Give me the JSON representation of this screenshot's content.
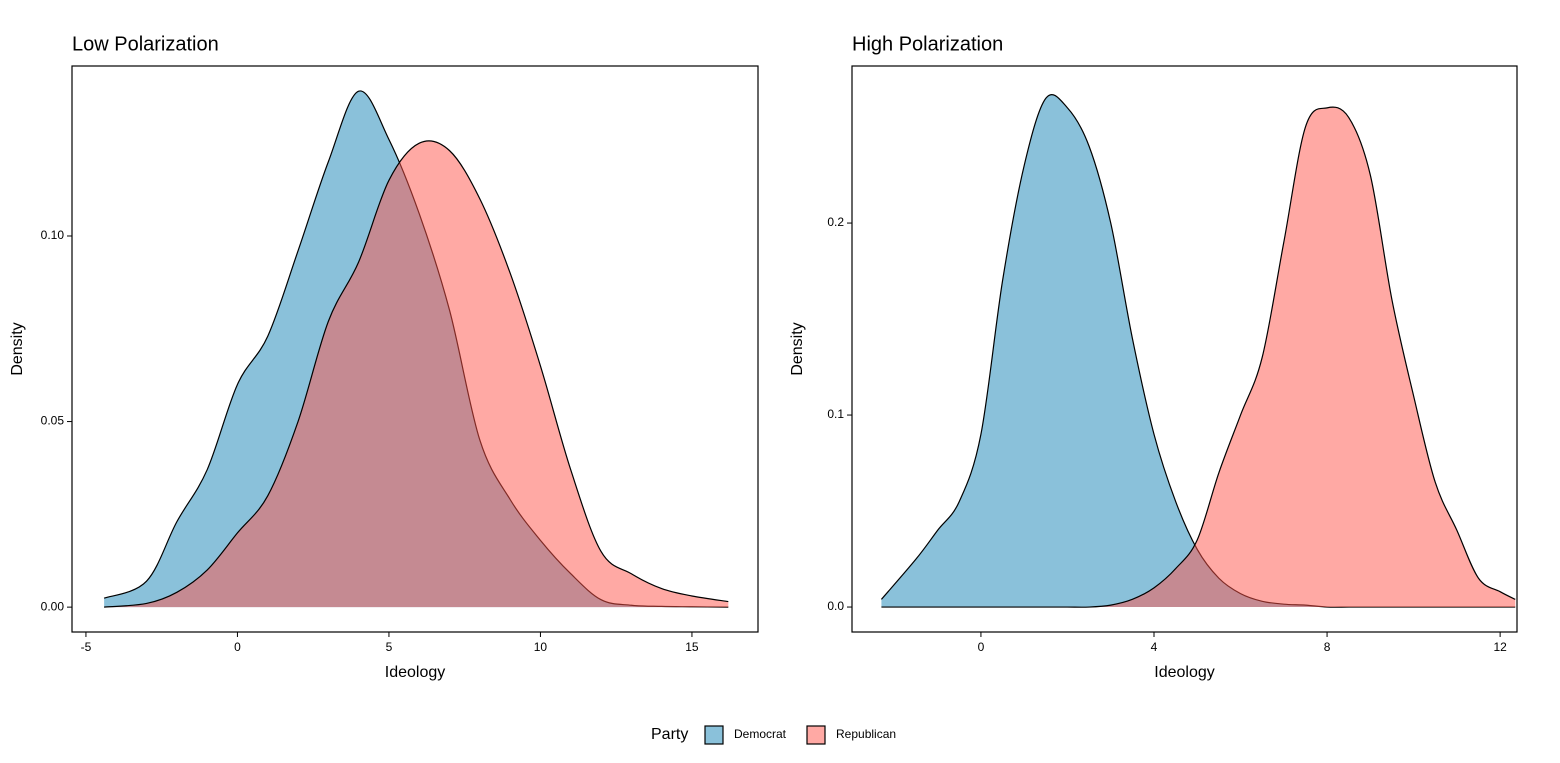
{
  "chart_data": [
    {
      "type": "area",
      "title": "Low Polarization",
      "xlabel": "Ideology",
      "ylabel": "Density",
      "x": [
        -4.4,
        -3,
        -2,
        -1,
        0,
        1,
        2,
        3,
        4,
        5,
        6,
        7,
        8,
        9,
        10,
        11,
        12,
        13,
        14,
        15,
        16.2
      ],
      "series": [
        {
          "name": "Democrat",
          "color": "#1583b5",
          "values": [
            0.0024,
            0.007,
            0.023,
            0.037,
            0.06,
            0.073,
            0.096,
            0.12,
            0.139,
            0.126,
            0.106,
            0.08,
            0.045,
            0.029,
            0.018,
            0.009,
            0.002,
            0.0005,
            0.0002,
            0.0001,
            0
          ]
        },
        {
          "name": "Republican",
          "color": "#ff5349",
          "values": [
            0,
            0.001,
            0.004,
            0.01,
            0.02,
            0.03,
            0.05,
            0.077,
            0.093,
            0.115,
            0.125,
            0.123,
            0.11,
            0.09,
            0.065,
            0.037,
            0.015,
            0.009,
            0.005,
            0.003,
            0.0015
          ]
        }
      ],
      "xlim": [
        -5.46,
        17.18
      ],
      "ylim": [
        -0.0067,
        0.1458
      ],
      "xticks": [
        -5,
        0,
        5,
        10,
        15
      ],
      "yticks": [
        {
          "value": 0,
          "label": "0.00"
        },
        {
          "value": 0.05,
          "label": "0.05"
        },
        {
          "value": 0.1,
          "label": "0.10"
        }
      ],
      "grid": false
    },
    {
      "type": "area",
      "title": "High Polarization",
      "xlabel": "Ideology",
      "ylabel": "Density",
      "x": [
        -2.3,
        -1.5,
        -1,
        -0.5,
        0,
        0.5,
        1,
        1.5,
        2,
        2.5,
        3,
        3.5,
        4,
        4.5,
        5,
        5.5,
        6,
        6.5,
        7,
        7.5,
        8,
        8.5,
        9,
        9.5,
        10,
        10.5,
        11,
        11.5,
        12,
        12.35
      ],
      "series": [
        {
          "name": "Democrat",
          "color": "#1583b5",
          "values": [
            0.004,
            0.025,
            0.04,
            0.055,
            0.09,
            0.17,
            0.23,
            0.265,
            0.26,
            0.24,
            0.2,
            0.14,
            0.09,
            0.055,
            0.03,
            0.015,
            0.007,
            0.003,
            0.0015,
            0.001,
            0,
            0,
            0,
            0,
            0,
            0,
            0,
            0,
            0,
            0
          ]
        },
        {
          "name": "Republican",
          "color": "#ff5349",
          "values": [
            0,
            0,
            0,
            0,
            0,
            0,
            0,
            0,
            0,
            0,
            0.001,
            0.004,
            0.01,
            0.02,
            0.035,
            0.07,
            0.1,
            0.13,
            0.19,
            0.25,
            0.26,
            0.255,
            0.225,
            0.16,
            0.11,
            0.065,
            0.04,
            0.015,
            0.008,
            0.004
          ]
        }
      ],
      "xlim": [
        -2.98,
        12.39
      ],
      "ylim": [
        -0.013,
        0.2818
      ],
      "xticks": [
        0,
        4,
        8,
        12
      ],
      "yticks": [
        {
          "value": 0,
          "label": "0.0"
        },
        {
          "value": 0.1,
          "label": "0.1"
        },
        {
          "value": 0.2,
          "label": "0.2"
        }
      ],
      "grid": false
    }
  ],
  "legend": {
    "title": "Party",
    "position": "bottom"
  }
}
